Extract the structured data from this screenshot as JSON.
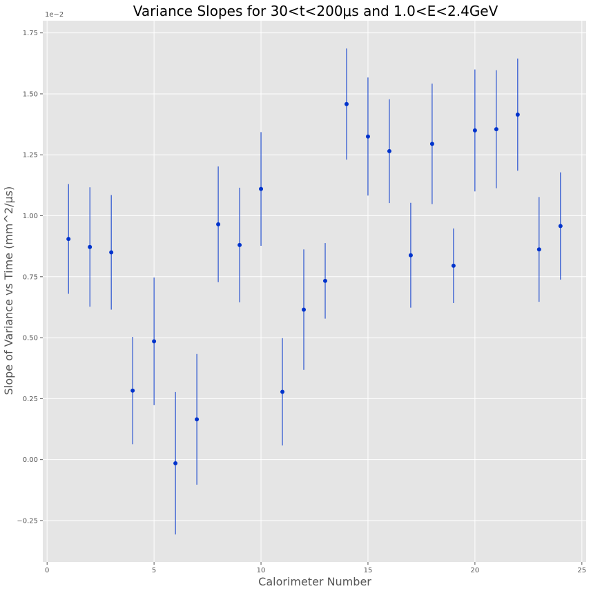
{
  "chart_data": {
    "type": "scatter",
    "title": "Variance Slopes for 30<t<200μs and 1.0<E<2.4GeV",
    "xlabel": "Calorimeter Number",
    "ylabel": "Slope of Variance vs Time (mm^2/μs)",
    "y_offset_label": "1e−2",
    "xlim": [
      -0.2,
      25.2
    ],
    "ylim": [
      -0.42,
      1.8
    ],
    "x_ticks": [
      0,
      5,
      10,
      15,
      20,
      25
    ],
    "x_tick_labels": [
      "0",
      "5",
      "10",
      "15",
      "20",
      "25"
    ],
    "y_ticks": [
      -0.25,
      0.0,
      0.25,
      0.5,
      0.75,
      1.0,
      1.25,
      1.5,
      1.75
    ],
    "y_tick_labels": [
      "−0.25",
      "0.00",
      "0.25",
      "0.50",
      "0.75",
      "1.00",
      "1.25",
      "1.50",
      "1.75"
    ],
    "grid": true,
    "series": [
      {
        "color": "#0033cc",
        "x": [
          1,
          2,
          3,
          4,
          5,
          6,
          7,
          8,
          9,
          10,
          11,
          12,
          13,
          14,
          15,
          16,
          17,
          18,
          19,
          20,
          21,
          22,
          23,
          24
        ],
        "y": [
          0.905,
          0.872,
          0.85,
          0.283,
          0.485,
          -0.015,
          0.165,
          0.965,
          0.88,
          1.11,
          0.278,
          0.615,
          0.733,
          1.458,
          1.325,
          1.265,
          0.838,
          1.295,
          0.795,
          1.35,
          1.355,
          1.415,
          0.862,
          0.958
        ],
        "yerr": [
          0.225,
          0.245,
          0.235,
          0.22,
          0.262,
          0.292,
          0.268,
          0.237,
          0.235,
          0.233,
          0.22,
          0.247,
          0.155,
          0.228,
          0.242,
          0.213,
          0.215,
          0.247,
          0.153,
          0.25,
          0.242,
          0.23,
          0.215,
          0.22
        ]
      }
    ]
  }
}
